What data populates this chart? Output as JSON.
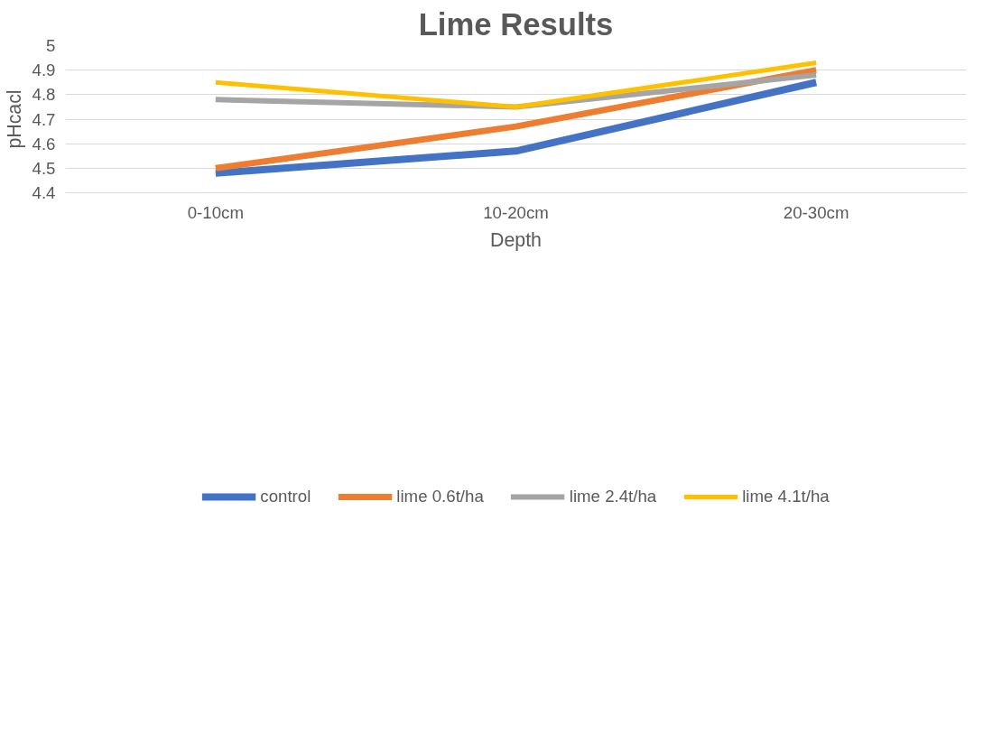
{
  "chart_data": {
    "type": "line",
    "title": "Lime Results",
    "xlabel": "Depth",
    "ylabel": "pHcacl",
    "categories": [
      "0-10cm",
      "10-20cm",
      "20-30cm"
    ],
    "series": [
      {
        "name": "control",
        "color": "#4472c4",
        "values": [
          4.48,
          4.57,
          4.85
        ]
      },
      {
        "name": "lime 0.6t/ha",
        "color": "#ed7d31",
        "values": [
          4.5,
          4.67,
          4.9
        ]
      },
      {
        "name": "lime 2.4t/ha",
        "color": "#a5a5a5",
        "values": [
          4.78,
          4.75,
          4.88
        ]
      },
      {
        "name": "lime 4.1t/ha",
        "color": "#ffc000",
        "values": [
          4.85,
          4.75,
          4.93
        ]
      }
    ],
    "ylim": [
      4.4,
      5
    ],
    "yticks": [
      4.4,
      4.5,
      4.6,
      4.7,
      4.8,
      4.9,
      5
    ],
    "grid": "y",
    "legend": "bottom",
    "marker": "none",
    "line_style": "solid"
  }
}
